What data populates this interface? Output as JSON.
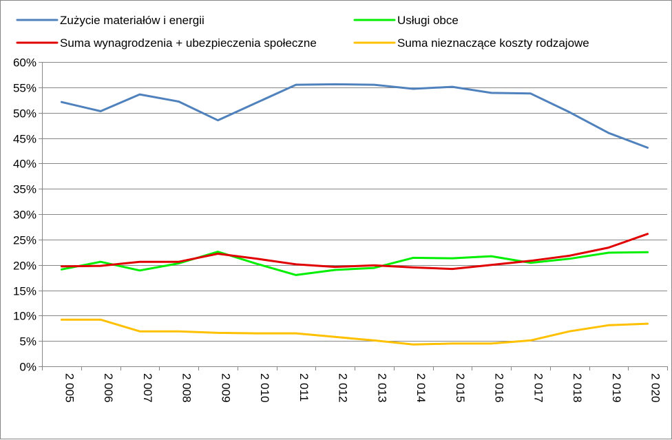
{
  "chart_data": {
    "type": "line",
    "x": [
      "2 005",
      "2 006",
      "2 007",
      "2 008",
      "2 009",
      "2 010",
      "2 011",
      "2 012",
      "2 013",
      "2 014",
      "2 015",
      "2 016",
      "2 017",
      "2 018",
      "2 019",
      "2 020"
    ],
    "ylim": [
      0,
      60
    ],
    "yticks": [
      "0%",
      "5%",
      "10%",
      "15%",
      "20%",
      "25%",
      "30%",
      "35%",
      "40%",
      "45%",
      "50%",
      "55%",
      "60%"
    ],
    "grid": true,
    "legend_placement": "top",
    "series": [
      {
        "name": "Zużycie materiałów i energii",
        "color": "#4F81BD",
        "values": [
          52.1,
          50.3,
          53.6,
          52.2,
          48.5,
          52.0,
          55.5,
          55.6,
          55.5,
          54.7,
          55.1,
          53.9,
          53.8,
          50.1,
          46.0,
          43.1
        ]
      },
      {
        "name": "Usługi obce",
        "color": "#00EE00",
        "values": [
          19.1,
          20.6,
          18.9,
          20.3,
          22.6,
          20.2,
          18.0,
          19.0,
          19.4,
          21.4,
          21.3,
          21.7,
          20.4,
          21.2,
          22.4,
          22.5
        ]
      },
      {
        "name": "Suma wynagrodzenia + ubezpieczenia społeczne",
        "color": "#E00000",
        "values": [
          19.7,
          19.8,
          20.6,
          20.6,
          22.2,
          21.2,
          20.1,
          19.6,
          19.9,
          19.5,
          19.2,
          20.0,
          20.8,
          21.8,
          23.4,
          26.1
        ]
      },
      {
        "name": "Suma nieznaczące koszty rodzajowe",
        "color": "#FFC000",
        "values": [
          9.2,
          9.2,
          6.9,
          6.9,
          6.6,
          6.5,
          6.5,
          5.8,
          5.1,
          4.3,
          4.5,
          4.5,
          5.1,
          6.9,
          8.1,
          8.4
        ]
      }
    ]
  }
}
